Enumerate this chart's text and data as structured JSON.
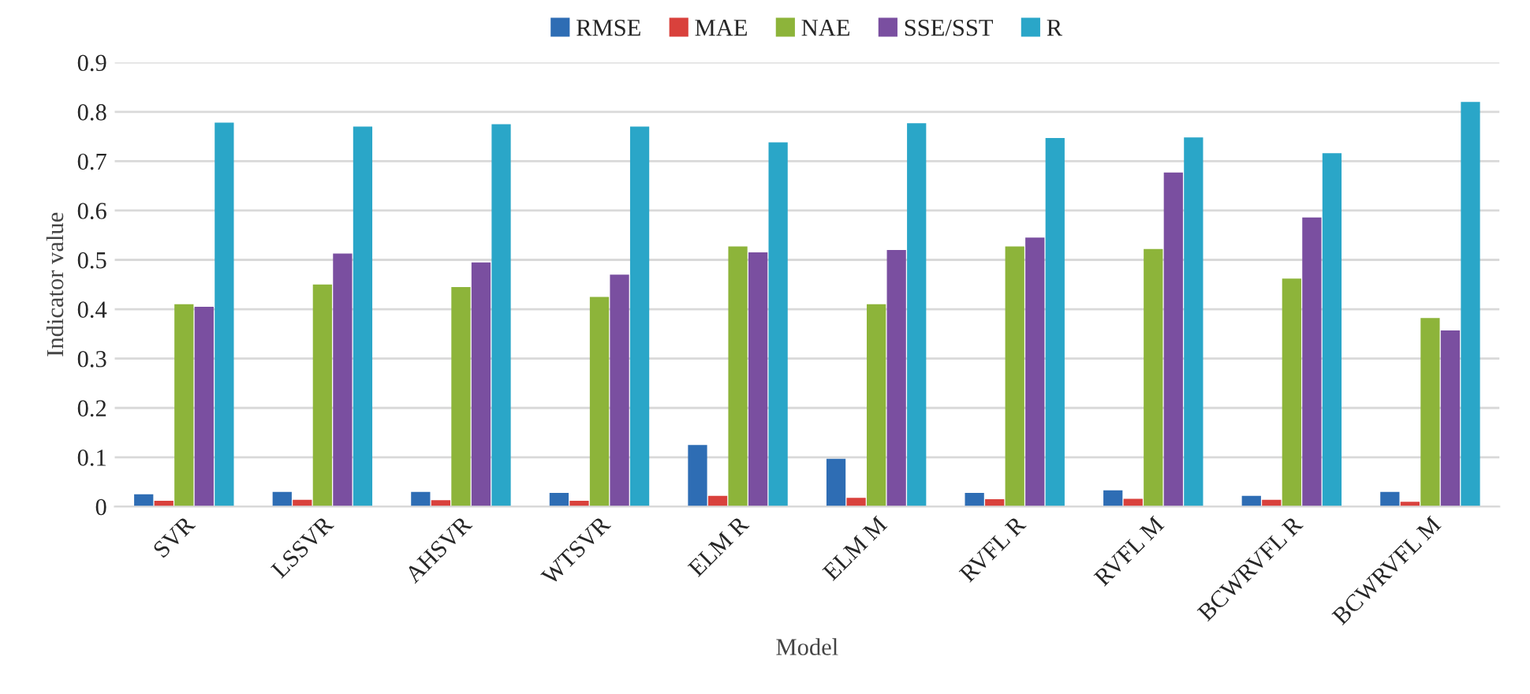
{
  "chart_data": {
    "type": "bar",
    "xlabel": "Model",
    "ylabel": "Indicator value",
    "categories": [
      "SVR",
      "LSSVR",
      "AHSVR",
      "WTSVR",
      "ELM R",
      "ELM M",
      "RVFL R",
      "RVFL M",
      "BCWRVFL R",
      "BCWRVFL M"
    ],
    "series": [
      {
        "name": "RMSE",
        "color": "#2e6db4",
        "values": [
          0.025,
          0.03,
          0.03,
          0.028,
          0.125,
          0.097,
          0.028,
          0.033,
          0.022,
          0.03
        ]
      },
      {
        "name": "MAE",
        "color": "#d9413c",
        "values": [
          0.012,
          0.014,
          0.013,
          0.012,
          0.022,
          0.018,
          0.015,
          0.016,
          0.014,
          0.01
        ]
      },
      {
        "name": "NAE",
        "color": "#8db43a",
        "values": [
          0.41,
          0.45,
          0.445,
          0.425,
          0.527,
          0.41,
          0.527,
          0.522,
          0.462,
          0.382
        ]
      },
      {
        "name": "SSE/SST",
        "color": "#7a4fa0",
        "values": [
          0.405,
          0.513,
          0.495,
          0.47,
          0.515,
          0.52,
          0.545,
          0.677,
          0.586,
          0.357
        ]
      },
      {
        "name": "R",
        "color": "#2aa6c8",
        "values": [
          0.778,
          0.77,
          0.775,
          0.77,
          0.738,
          0.777,
          0.747,
          0.748,
          0.716,
          0.82
        ]
      }
    ],
    "ylim": [
      0,
      0.9
    ],
    "yticks": [
      0,
      0.1,
      0.2,
      0.3,
      0.4,
      0.5,
      0.6,
      0.7,
      0.8,
      0.9
    ],
    "grid": "y",
    "legend": "top"
  }
}
